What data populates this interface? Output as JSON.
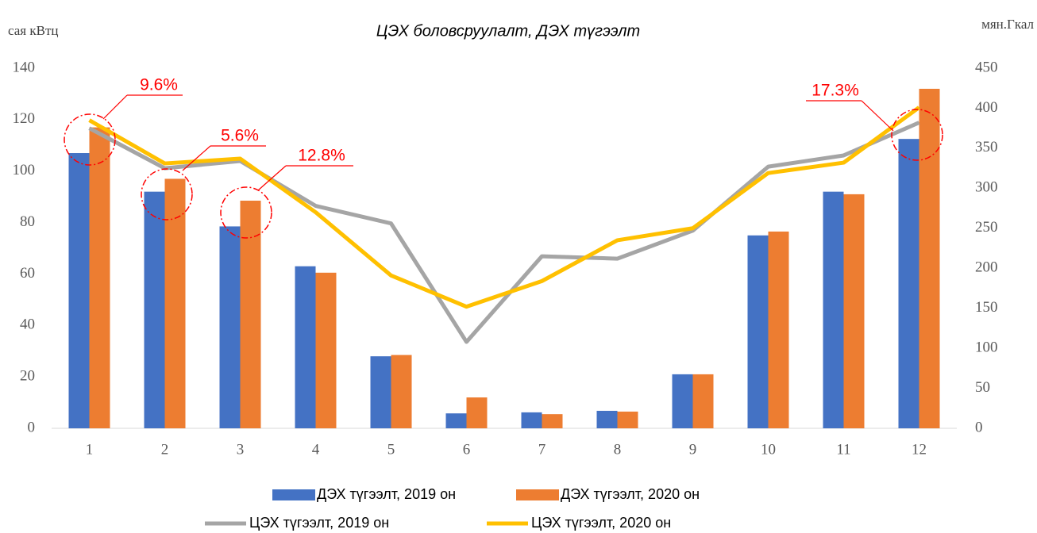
{
  "chart_data": {
    "type": "bar-line",
    "title": "ЦЭХ боловсруулалт, ДЭХ түгээлт",
    "y_label": "сая кВтц",
    "y2_label": "мян.Гкал",
    "categories": [
      "1",
      "2",
      "3",
      "4",
      "5",
      "6",
      "7",
      "8",
      "9",
      "10",
      "11",
      "12"
    ],
    "series": [
      {
        "name": "ДЭХ түгээлт, 2019 он",
        "type": "bar",
        "color": "#4472c4",
        "values": [
          107,
          92,
          78.5,
          63,
          28,
          5.8,
          6.2,
          6.8,
          21,
          75,
          92,
          112.5
        ]
      },
      {
        "name": "ДЭХ түгээлт, 2020 он",
        "type": "bar",
        "color": "#ed7d31",
        "values": [
          117,
          97,
          88.5,
          60.5,
          28.5,
          12,
          5.5,
          6.5,
          21,
          76.5,
          91,
          132
        ]
      },
      {
        "name": "ЦЭХ түгээлт, 2019 он",
        "type": "line",
        "axis": "y2",
        "color": "#a5a5a5",
        "values": [
          375,
          325,
          334,
          278,
          256,
          108,
          215,
          212,
          247,
          327,
          341,
          382
        ]
      },
      {
        "name": "ЦЭХ түгээлт, 2020 он",
        "type": "line",
        "axis": "y2",
        "color": "#ffc000",
        "values": [
          385,
          331,
          337,
          270,
          191,
          152,
          184,
          235,
          250,
          319,
          332,
          401
        ]
      }
    ],
    "ylim": [
      0,
      140
    ],
    "yticks": [
      0,
      20,
      40,
      60,
      80,
      100,
      120,
      140
    ],
    "y2lim": [
      0,
      450
    ],
    "y2ticks": [
      0,
      50,
      100,
      150,
      200,
      250,
      300,
      350,
      400,
      450
    ],
    "annotations": [
      "9.6%",
      "5.6%",
      "12.8%",
      "17.3%"
    ],
    "legend": "bottom"
  }
}
